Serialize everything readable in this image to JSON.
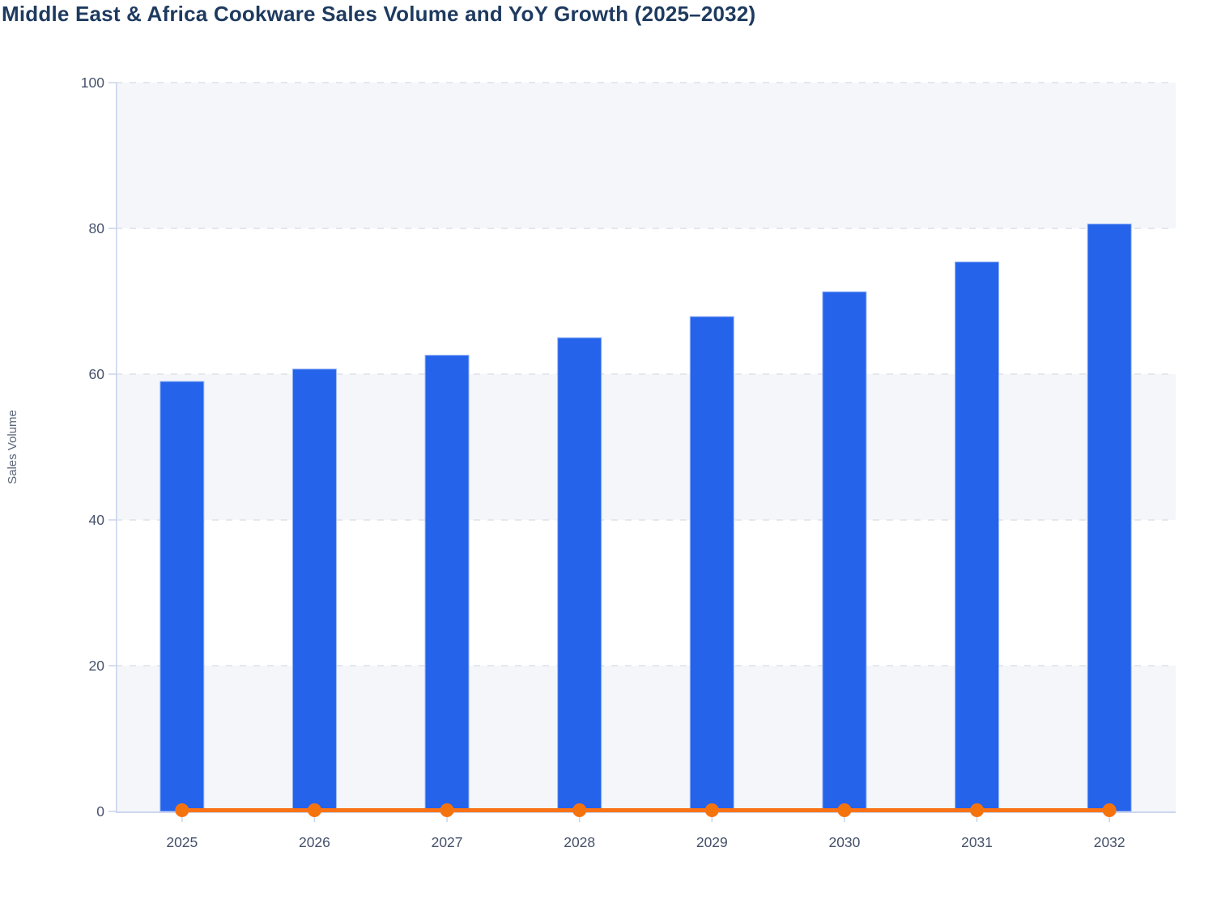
{
  "header": {
    "title": "Middle East & Africa Cookware Sales Volume and YoY Growth (2025–2032)",
    "title_color": "#1e3a5f"
  },
  "chart_data": {
    "type": "bar",
    "subtype": "bar-with-line-overlay",
    "title": "Middle East & Africa Cookware Sales Volume and YoY Growth (2025–2032)",
    "categories": [
      "2025",
      "2026",
      "2027",
      "2028",
      "2029",
      "2030",
      "2031",
      "2032"
    ],
    "series": [
      {
        "name": "Sales Volume",
        "type": "bar",
        "color": "#2563eb",
        "bar_border_color": "#9bb8f5",
        "values": [
          59.0,
          60.7,
          62.6,
          65.0,
          67.9,
          71.3,
          75.4,
          80.6
        ]
      },
      {
        "name": "YoY Growth",
        "type": "line",
        "color": "#f97316",
        "marker_color": "#f4730c",
        "values_displayed": [
          0,
          0,
          0,
          0,
          0,
          0,
          0,
          0
        ]
      }
    ],
    "xlabel": "",
    "ylabel": "Sales Volume",
    "ylim": [
      0,
      100
    ],
    "yticks": [
      0,
      20,
      40,
      60,
      80,
      100
    ],
    "grid": "dashed-horizontal",
    "legend": "none",
    "band_fill": "#f4f6fa",
    "gridline_color": "#e4e7ec",
    "axis_line_color": "#c9d3ec",
    "baseline_color": "#ccd6ee",
    "ytick_label_color": "#47526b",
    "xtick_label_color": "#44506a",
    "ylabel_color": "#5a6577"
  }
}
